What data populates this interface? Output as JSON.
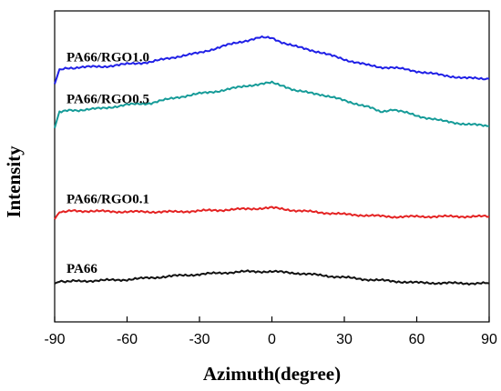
{
  "chart_data": {
    "type": "line",
    "title": "",
    "xlabel": "Azimuth(degree)",
    "ylabel": "Intensity",
    "xlim": [
      -90,
      90
    ],
    "ylim": [
      0,
      100
    ],
    "xticks": [
      -90,
      -60,
      -30,
      0,
      30,
      60,
      90
    ],
    "xtick_labels": [
      "-90",
      "-60",
      "-30",
      "0",
      "30",
      "60",
      "90"
    ],
    "y_tick_labels_shown": false,
    "grid": false,
    "legend": "none (series labeled directly above curves)",
    "series": [
      {
        "name": "PA66/RGO1.0",
        "color": "#1f1fe6",
        "x": [
          -90,
          -88,
          -80,
          -70,
          -60,
          -50,
          -40,
          -30,
          -20,
          -10,
          -5,
          0,
          5,
          10,
          20,
          30,
          40,
          45,
          50,
          60,
          70,
          80,
          90
        ],
        "y": [
          76.5,
          81.1,
          81.9,
          82.1,
          82.9,
          83.6,
          85.2,
          86.5,
          88.7,
          90.6,
          91.4,
          91.3,
          89.7,
          88.5,
          86.7,
          84.4,
          82.5,
          81.9,
          81.8,
          80.6,
          79.4,
          78.4,
          78.2
        ]
      },
      {
        "name": "PA66/RGO0.5",
        "color": "#159b98",
        "x": [
          -90,
          -88,
          -80,
          -70,
          -60,
          -50,
          -40,
          -30,
          -20,
          -10,
          0,
          5,
          10,
          20,
          30,
          40,
          45,
          50,
          60,
          70,
          80,
          90
        ],
        "y": [
          62.3,
          67.7,
          68.1,
          68.7,
          69.8,
          70.4,
          72.1,
          73.4,
          74.5,
          76.0,
          76.9,
          75.9,
          74.3,
          73.2,
          71.2,
          69.1,
          67.5,
          68.4,
          66.3,
          64.7,
          63.6,
          63.0
        ]
      },
      {
        "name": "PA66/RGO0.1",
        "color": "#e42222",
        "x": [
          -90,
          -88,
          -80,
          -60,
          -40,
          -20,
          0,
          10,
          30,
          50,
          70,
          90
        ],
        "y": [
          33.0,
          35.5,
          35.7,
          35.4,
          35.4,
          36.0,
          36.7,
          35.8,
          34.6,
          33.8,
          33.9,
          33.9
        ]
      },
      {
        "name": "PA66",
        "color": "#111111",
        "x": [
          -90,
          -88,
          -80,
          -60,
          -40,
          -20,
          -10,
          0,
          10,
          20,
          40,
          60,
          80,
          90
        ],
        "y": [
          12.3,
          13.1,
          13.1,
          13.6,
          14.8,
          15.8,
          16.2,
          16.2,
          15.7,
          15.0,
          13.6,
          12.6,
          12.4,
          12.4
        ]
      }
    ]
  }
}
